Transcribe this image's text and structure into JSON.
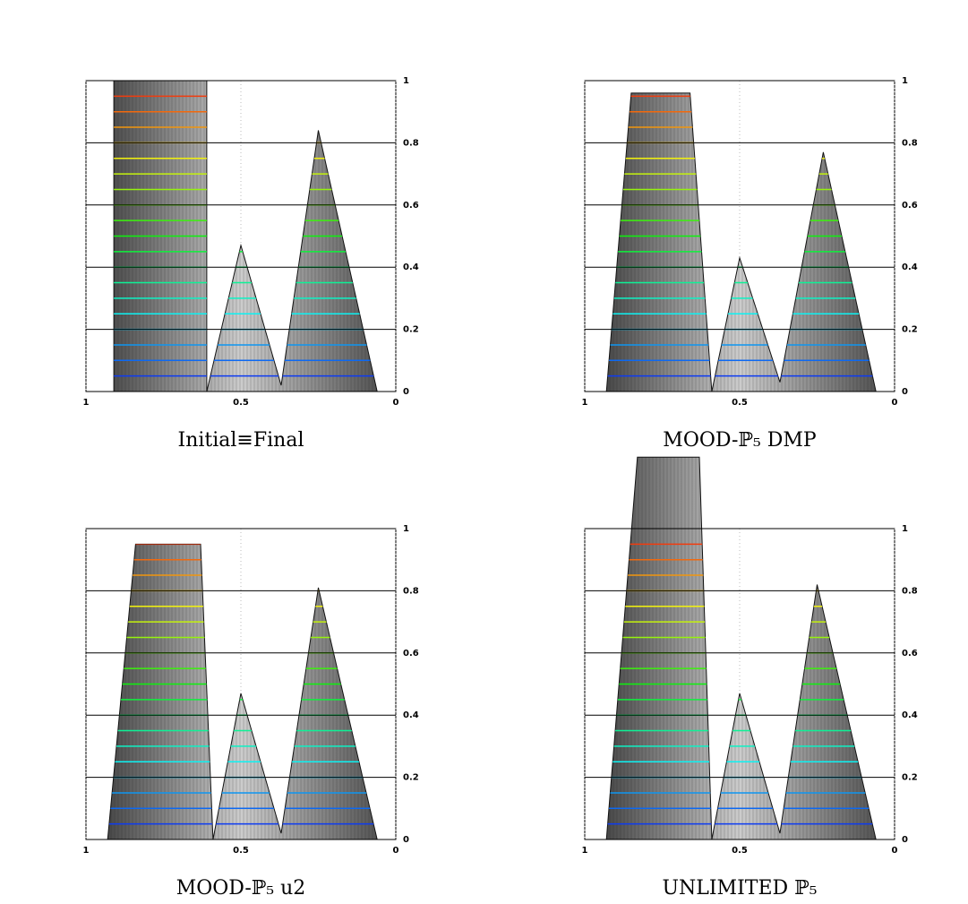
{
  "chart_data": [
    {
      "type": "surface",
      "caption": "Initial≡Final",
      "color": "#b4b4b4",
      "x": [
        1,
        0.91,
        0.91,
        0.61,
        0.61,
        0.5,
        0.37,
        0.25,
        0.06,
        0
      ],
      "values": [
        0,
        0,
        1,
        1,
        0,
        0.47,
        0.02,
        0.84,
        0,
        0
      ],
      "xlim": [
        1,
        0
      ],
      "ylim": [
        0,
        1
      ],
      "xticks": [
        1,
        0.5,
        0
      ],
      "yticks": [
        0,
        0.2,
        0.4,
        0.6,
        0.8,
        1
      ]
    },
    {
      "type": "surface",
      "caption": "MOOD-ℙ₅ DMP",
      "color": "#b4b4b4",
      "x": [
        1,
        0.93,
        0.85,
        0.66,
        0.59,
        0.5,
        0.37,
        0.23,
        0.06,
        0
      ],
      "values": [
        0,
        0,
        0.96,
        0.96,
        0,
        0.43,
        0.03,
        0.77,
        0,
        0
      ],
      "xlim": [
        1,
        0
      ],
      "ylim": [
        0,
        1
      ],
      "xticks": [
        1,
        0.5,
        0
      ],
      "yticks": [
        0,
        0.2,
        0.4,
        0.6,
        0.8,
        1
      ]
    },
    {
      "type": "surface",
      "caption": "MOOD-ℙ₅ u2",
      "color": "#b4b4b4",
      "x": [
        1,
        0.93,
        0.84,
        0.63,
        0.59,
        0.5,
        0.37,
        0.25,
        0.06,
        0
      ],
      "values": [
        0,
        0,
        0.95,
        0.95,
        0,
        0.47,
        0.02,
        0.81,
        0,
        0
      ],
      "xlim": [
        1,
        0
      ],
      "ylim": [
        0,
        1
      ],
      "xticks": [
        1,
        0.5,
        0
      ],
      "yticks": [
        0,
        0.2,
        0.4,
        0.6,
        0.8,
        1
      ]
    },
    {
      "type": "surface",
      "caption": "UNLIMITED ℙ₅",
      "color": "#b4b4b4",
      "x": [
        1,
        0.93,
        0.83,
        0.63,
        0.59,
        0.5,
        0.37,
        0.25,
        0.06,
        0
      ],
      "values": [
        0,
        0,
        1.23,
        1.23,
        0,
        0.47,
        0.02,
        0.82,
        0,
        0
      ],
      "xlim": [
        1,
        0
      ],
      "ylim": [
        0,
        1
      ],
      "xticks": [
        1,
        0.5,
        0
      ],
      "yticks": [
        0,
        0.2,
        0.4,
        0.6,
        0.8,
        1
      ]
    }
  ]
}
